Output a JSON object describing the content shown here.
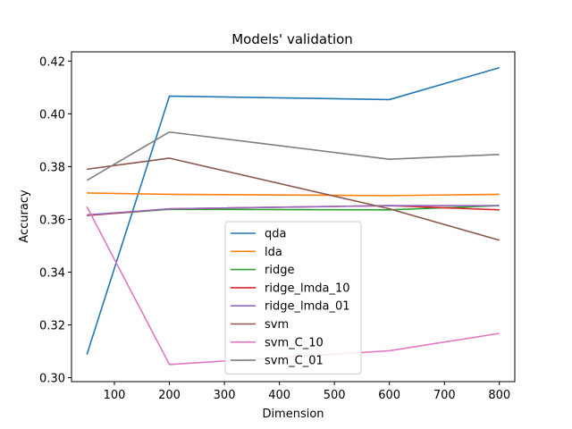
{
  "chart_data": {
    "type": "line",
    "title": "Models' validation",
    "xlabel": "Dimension",
    "ylabel": "Accuracy",
    "xlim": [
      22,
      828
    ],
    "ylim": [
      0.2985,
      0.4235
    ],
    "xticks": [
      100,
      200,
      300,
      400,
      500,
      600,
      700,
      800
    ],
    "yticks": [
      0.3,
      0.32,
      0.34,
      0.36,
      0.38,
      0.4,
      0.42
    ],
    "ytick_labels": [
      "0.30",
      "0.32",
      "0.34",
      "0.36",
      "0.38",
      "0.40",
      "0.42"
    ],
    "grid": false,
    "legend_position": "lower center",
    "x": [
      50,
      200,
      600,
      800
    ],
    "series": [
      {
        "name": "qda",
        "color": "#1f77b4",
        "values": [
          0.3088,
          0.4067,
          0.4054,
          0.4175
        ]
      },
      {
        "name": "lda",
        "color": "#ff7f0e",
        "values": [
          0.37,
          0.3695,
          0.369,
          0.3695
        ]
      },
      {
        "name": "ridge",
        "color": "#2ca02c",
        "values": [
          0.3615,
          0.3638,
          0.3636,
          0.3652
        ]
      },
      {
        "name": "ridge_lmda_10",
        "color": "#d62728",
        "values": [
          0.3615,
          0.364,
          0.3652,
          0.3636
        ]
      },
      {
        "name": "ridge_lmda_01",
        "color": "#9467bd",
        "values": [
          0.3617,
          0.364,
          0.3652,
          0.3652
        ]
      },
      {
        "name": "svm",
        "color": "#8c564b",
        "values": [
          0.379,
          0.3832,
          0.364,
          0.3521
        ]
      },
      {
        "name": "svm_C_10",
        "color": "#e377c2",
        "values": [
          0.3648,
          0.305,
          0.3102,
          0.3168
        ]
      },
      {
        "name": "svm_C_01",
        "color": "#7f7f7f",
        "values": [
          0.3748,
          0.3931,
          0.3828,
          0.3846
        ]
      }
    ]
  }
}
